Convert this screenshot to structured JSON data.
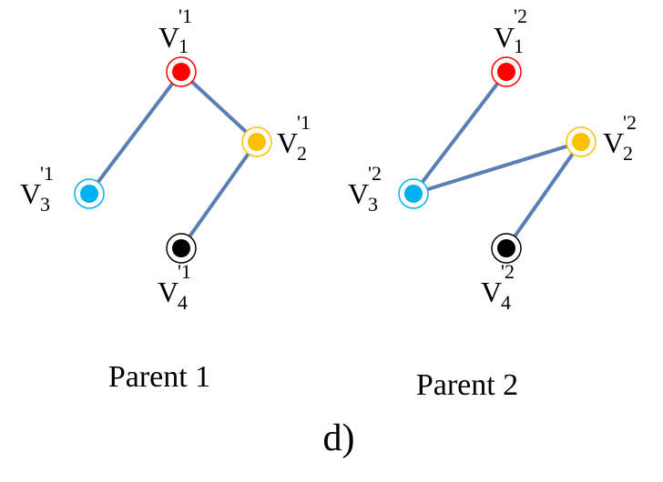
{
  "colors": {
    "edge": "#5b7fb5",
    "red": "#ff0000",
    "orange": "#ffc000",
    "blue": "#00b0f0",
    "black": "#000000"
  },
  "parent1": {
    "caption": "Parent 1",
    "nodes": {
      "v1": {
        "base": "V",
        "sup": "'1",
        "sub": "1"
      },
      "v2": {
        "base": "V",
        "sup": "'1",
        "sub": "2"
      },
      "v3": {
        "base": "V",
        "sup": "'1",
        "sub": "3"
      },
      "v4": {
        "base": "V",
        "sup": "'1",
        "sub": "4"
      }
    }
  },
  "parent2": {
    "caption": "Parent 2",
    "nodes": {
      "v1": {
        "base": "V",
        "sup": "'2",
        "sub": "1"
      },
      "v2": {
        "base": "V",
        "sup": "'2",
        "sub": "2"
      },
      "v3": {
        "base": "V",
        "sup": "'2",
        "sub": "3"
      },
      "v4": {
        "base": "V",
        "sup": "'2",
        "sub": "4"
      }
    }
  },
  "panel_label": "d)"
}
